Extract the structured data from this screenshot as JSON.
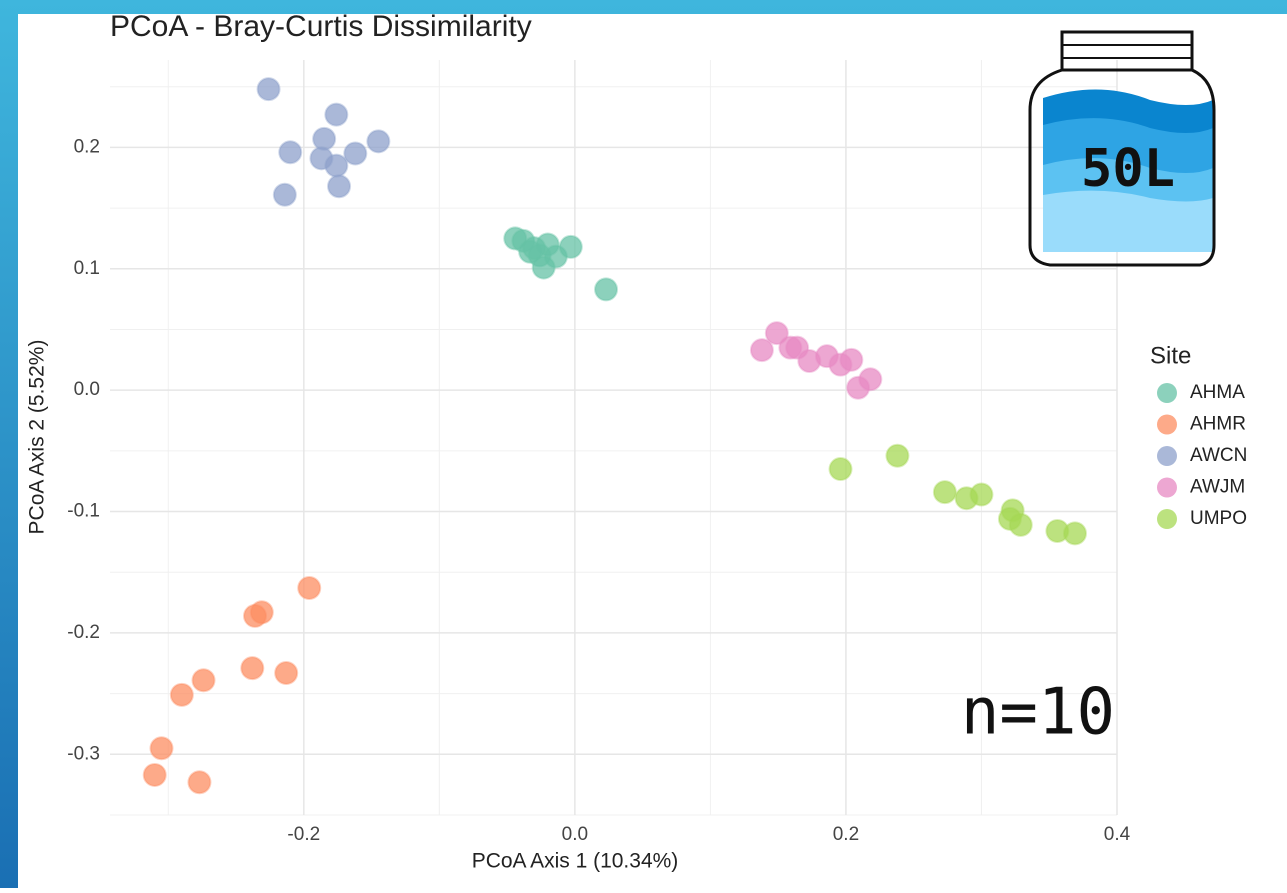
{
  "chart_data": {
    "type": "scatter",
    "title": "PCoA - Bray-Curtis Dissimilarity",
    "x_label": "PCoA Axis 1 (10.34%)",
    "y_label": "PCoA Axis 2 (5.52%)",
    "legend_title": "Site",
    "legend_position": "right",
    "grid": true,
    "annotations": [
      "50L",
      "n=10"
    ],
    "xlim": [
      -0.343,
      0.4
    ],
    "ylim": [
      -0.35,
      0.272
    ],
    "xticks": [
      -0.2,
      {
        "value": 0,
        "label": "0.0"
      },
      0.2,
      0.4
    ],
    "yticks": [
      -0.3,
      -0.2,
      -0.1,
      {
        "value": 0,
        "label": "0.0"
      },
      0.1,
      0.2
    ],
    "series": [
      {
        "name": "AHMA",
        "color": "#66c2a5",
        "x": [
          -0.044,
          -0.038,
          -0.02,
          -0.033,
          -0.026,
          -0.014,
          -0.003,
          -0.023,
          0.023,
          -0.03
        ],
        "values": [
          0.125,
          0.123,
          0.12,
          0.114,
          0.111,
          0.11,
          0.118,
          0.101,
          0.083,
          0.117
        ]
      },
      {
        "name": "AHMR",
        "color": "#fc8d62",
        "x": [
          -0.196,
          -0.231,
          -0.236,
          -0.238,
          -0.213,
          -0.274,
          -0.29,
          -0.305,
          -0.31,
          -0.277
        ],
        "values": [
          -0.163,
          -0.183,
          -0.186,
          -0.229,
          -0.233,
          -0.239,
          -0.251,
          -0.295,
          -0.317,
          -0.323
        ]
      },
      {
        "name": "AWCN",
        "color": "#8da0cb",
        "x": [
          -0.226,
          -0.176,
          -0.21,
          -0.185,
          -0.187,
          -0.176,
          -0.162,
          -0.145,
          -0.214,
          -0.174
        ],
        "values": [
          0.248,
          0.227,
          0.196,
          0.207,
          0.191,
          0.185,
          0.195,
          0.205,
          0.161,
          0.168
        ]
      },
      {
        "name": "AWJM",
        "color": "#e78ac3",
        "x": [
          0.138,
          0.149,
          0.159,
          0.164,
          0.173,
          0.186,
          0.196,
          0.204,
          0.209,
          0.218
        ],
        "values": [
          0.033,
          0.047,
          0.035,
          0.035,
          0.024,
          0.028,
          0.021,
          0.025,
          0.002,
          0.009
        ]
      },
      {
        "name": "UMPO",
        "color": "#a6d854",
        "x": [
          0.196,
          0.238,
          0.273,
          0.289,
          0.3,
          0.323,
          0.321,
          0.329,
          0.356,
          0.369
        ],
        "values": [
          -0.065,
          -0.054,
          -0.084,
          -0.089,
          -0.086,
          -0.099,
          -0.106,
          -0.111,
          -0.116,
          -0.118
        ]
      }
    ]
  }
}
